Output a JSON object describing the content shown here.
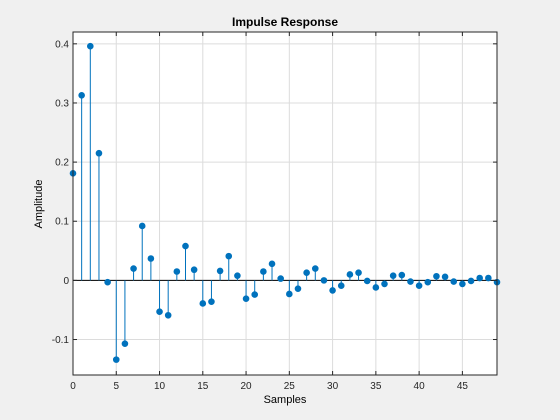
{
  "chart_data": {
    "type": "stem",
    "title": "Impulse Response",
    "xlabel": "Samples",
    "ylabel": "Amplitude",
    "xlim": [
      0,
      49
    ],
    "ylim": [
      -0.16,
      0.42
    ],
    "xticks": [
      0,
      5,
      10,
      15,
      20,
      25,
      30,
      35,
      40,
      45
    ],
    "xtick_labels": [
      "0",
      "5",
      "10",
      "15",
      "20",
      "25",
      "30",
      "35",
      "40",
      "45"
    ],
    "yticks": [
      -0.1,
      0,
      0.1,
      0.2,
      0.3,
      0.4
    ],
    "ytick_labels": [
      "-0.1",
      "0",
      "0.1",
      "0.2",
      "0.3",
      "0.4"
    ],
    "grid": true,
    "color": "#0072bd",
    "x": [
      0,
      1,
      2,
      3,
      4,
      5,
      6,
      7,
      8,
      9,
      10,
      11,
      12,
      13,
      14,
      15,
      16,
      17,
      18,
      19,
      20,
      21,
      22,
      23,
      24,
      25,
      26,
      27,
      28,
      29,
      30,
      31,
      32,
      33,
      34,
      35,
      36,
      37,
      38,
      39,
      40,
      41,
      42,
      43,
      44,
      45,
      46,
      47,
      48,
      49
    ],
    "y": [
      0.181,
      0.313,
      0.396,
      0.215,
      -0.003,
      -0.134,
      -0.107,
      0.02,
      0.092,
      0.037,
      -0.053,
      -0.059,
      0.015,
      0.058,
      0.018,
      -0.039,
      -0.036,
      0.016,
      0.041,
      0.008,
      -0.031,
      -0.024,
      0.015,
      0.028,
      0.003,
      -0.023,
      -0.014,
      0.013,
      0.02,
      0.0,
      -0.017,
      -0.009,
      0.01,
      0.013,
      -0.001,
      -0.012,
      -0.006,
      0.008,
      0.009,
      -0.002,
      -0.009,
      -0.003,
      0.007,
      0.006,
      -0.002,
      -0.006,
      -0.001,
      0.004,
      0.004,
      -0.003
    ]
  }
}
